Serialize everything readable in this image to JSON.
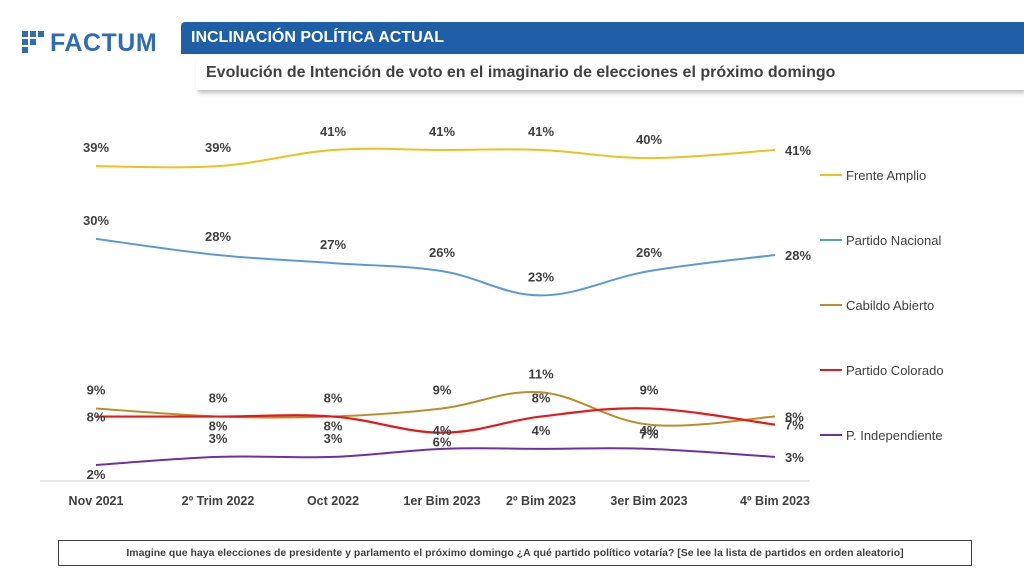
{
  "header": {
    "logo_text": "FACTUM",
    "title": "INCLINACIÓN POLÍTICA ACTUAL",
    "subtitle": "Evolución de Intención de voto en el imaginario de elecciones el próximo domingo"
  },
  "footnote": "Imagine que haya elecciones de presidente y parlamento el próximo domingo ¿A qué partido político votaría? [Se lee la lista de partidos en orden aleatorio]",
  "chart_data": {
    "type": "line",
    "categories": [
      "Nov 2021",
      "2º Trim 2022",
      "Oct 2022",
      "1er Bim 2023",
      "2º Bim 2023",
      "3er Bim 2023",
      "4º Bim 2023"
    ],
    "series": [
      {
        "name": "Frente Amplio",
        "color": "#f0c020",
        "values": [
          39,
          39,
          41,
          41,
          41,
          40,
          41
        ],
        "labels": [
          "39%",
          "39%",
          "41%",
          "41%",
          "41%",
          "40%",
          "41%"
        ]
      },
      {
        "name": "Partido Nacional",
        "color": "#5b9bd5",
        "values": [
          30,
          28,
          27,
          26,
          23,
          26,
          28
        ],
        "labels": [
          "30%",
          "28%",
          "27%",
          "26%",
          "23%",
          "26%",
          "28%"
        ]
      },
      {
        "name": "Cabildo Abierto",
        "color": "#b8902a",
        "values": [
          9,
          8,
          8,
          9,
          11,
          7,
          8
        ],
        "labels": [
          "9%",
          "8%",
          "8%",
          "9%",
          "11%",
          "7%",
          "8%"
        ]
      },
      {
        "name": "Partido Colorado",
        "color": "#e31a1c",
        "values": [
          8,
          8,
          8,
          6,
          8,
          9,
          7
        ],
        "labels": [
          "8%",
          "8%",
          "8%",
          "6%",
          "8%",
          "9%",
          "7%"
        ]
      },
      {
        "name": "P. Independiente",
        "color": "#7030a0",
        "values": [
          2,
          3,
          3,
          4,
          4,
          4,
          3
        ],
        "labels": [
          "2%",
          "3%",
          "3%",
          "4%",
          "4%",
          "4%",
          "3%"
        ]
      }
    ],
    "grid": false,
    "legend_position": "right"
  }
}
